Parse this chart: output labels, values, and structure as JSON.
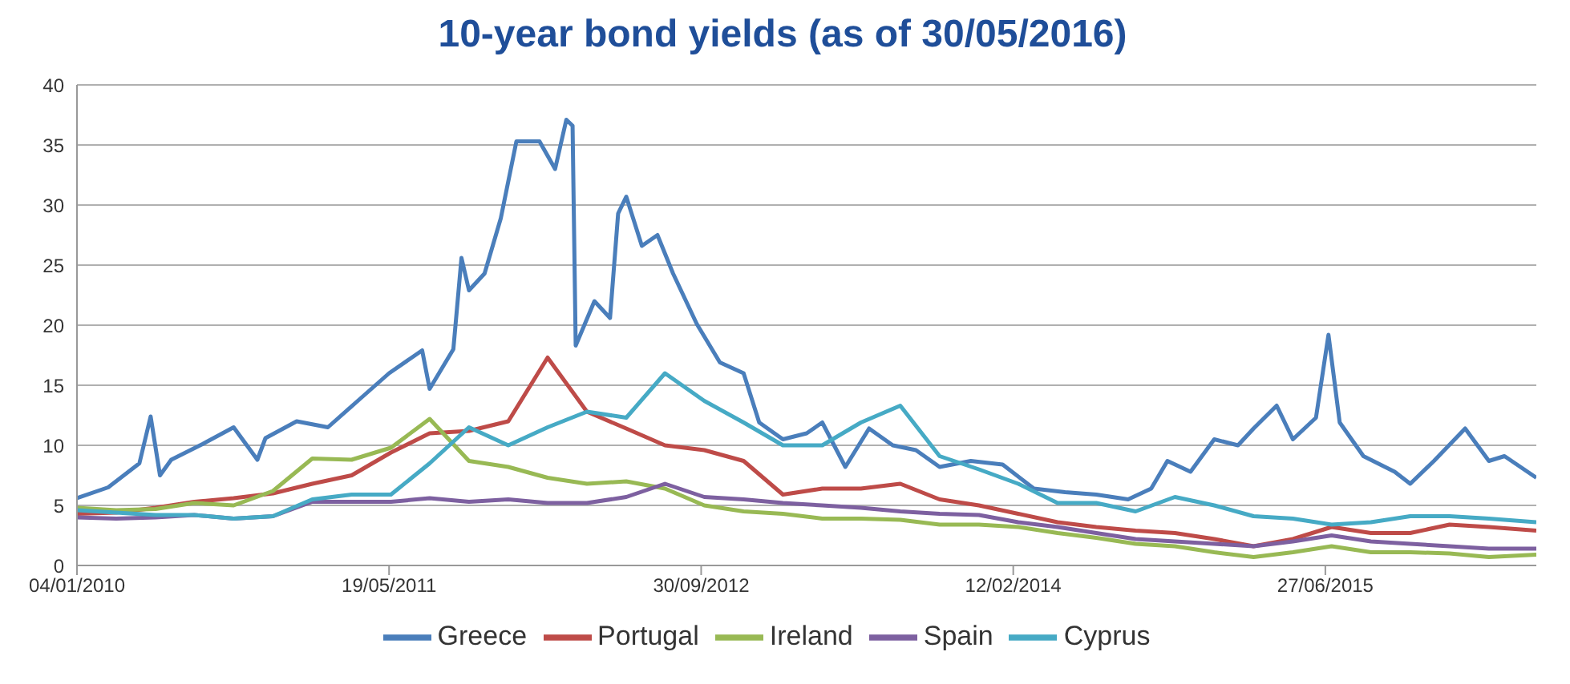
{
  "chart_data": {
    "type": "line",
    "title": "10-year bond yields (as of 30/05/2016)",
    "x": [
      "2010-01-04",
      "2010-03-08",
      "2010-05-10",
      "2010-07-11",
      "2010-09-12",
      "2010-11-14",
      "2011-01-16",
      "2011-03-20",
      "2011-05-22",
      "2011-07-23",
      "2011-09-24",
      "2011-11-26",
      "2012-01-28",
      "2012-03-31",
      "2012-06-02",
      "2012-08-03",
      "2012-10-05",
      "2012-12-07",
      "2013-02-08",
      "2013-04-12",
      "2013-06-13",
      "2013-08-15",
      "2013-10-17",
      "2013-12-19",
      "2014-02-20",
      "2014-04-24",
      "2014-06-25",
      "2014-08-27",
      "2014-10-29",
      "2014-12-31",
      "2015-03-04",
      "2015-05-06",
      "2015-07-07",
      "2015-09-08",
      "2015-11-10",
      "2016-01-12",
      "2016-03-15",
      "2016-05-30"
    ],
    "series": [
      {
        "name": "Greece",
        "color": "#4a7ebb",
        "x": [
          "2010-01-04",
          "2010-02-23",
          "2010-04-14",
          "2010-05-02",
          "2010-05-17",
          "2010-06-04",
          "2010-07-24",
          "2010-09-12",
          "2010-10-20",
          "2010-11-02",
          "2010-12-22",
          "2011-02-10",
          "2011-04-01",
          "2011-05-19",
          "2011-07-11",
          "2011-07-23",
          "2011-08-30",
          "2011-09-12",
          "2011-09-24",
          "2011-10-19",
          "2011-11-14",
          "2011-12-09",
          "2012-01-15",
          "2012-02-09",
          "2012-02-27",
          "2012-03-08",
          "2012-03-13",
          "2012-04-12",
          "2012-05-07",
          "2012-05-20",
          "2012-06-02",
          "2012-06-27",
          "2012-07-22",
          "2012-08-16",
          "2012-09-23",
          "2012-10-30",
          "2012-12-07",
          "2013-01-01",
          "2013-02-08",
          "2013-03-18",
          "2013-04-12",
          "2013-05-19",
          "2013-06-26",
          "2013-08-03",
          "2013-09-09",
          "2013-10-17",
          "2013-12-06",
          "2014-01-26",
          "2014-03-17",
          "2014-05-06",
          "2014-06-25",
          "2014-08-15",
          "2014-09-21",
          "2014-10-17",
          "2014-11-23",
          "2014-12-31",
          "2015-02-07",
          "2015-03-04",
          "2015-04-10",
          "2015-05-06",
          "2015-06-12",
          "2015-07-02",
          "2015-07-20",
          "2015-08-27",
          "2015-10-16",
          "2015-11-10",
          "2015-12-18",
          "2016-02-06",
          "2016-03-15",
          "2016-04-09",
          "2016-05-30"
        ],
        "values": [
          5.6,
          6.5,
          8.5,
          12.4,
          7.5,
          8.8,
          10.1,
          11.5,
          8.8,
          10.6,
          12,
          11.5,
          13.8,
          16,
          17.9,
          14.7,
          18,
          25.6,
          22.9,
          24.3,
          28.9,
          35.3,
          35.3,
          33,
          37.1,
          36.6,
          18.3,
          22,
          20.6,
          29.3,
          30.7,
          26.6,
          27.5,
          24.3,
          20.1,
          16.9,
          16,
          11.9,
          10.5,
          11,
          11.9,
          8.2,
          11.4,
          10,
          9.6,
          8.2,
          8.7,
          8.4,
          6.4,
          6.1,
          5.9,
          5.5,
          6.4,
          8.7,
          7.8,
          10.5,
          10,
          11.4,
          13.3,
          10.5,
          12.3,
          19.2,
          11.9,
          9.1,
          7.8,
          6.8,
          8.7,
          11.4,
          8.7,
          9.1,
          7.3
        ]
      },
      {
        "name": "Portugal",
        "color": "#be4b48",
        "values": [
          4.3,
          4.4,
          4.8,
          5.3,
          5.6,
          6.0,
          6.8,
          7.5,
          9.4,
          11.0,
          11.2,
          12.0,
          17.3,
          12.8,
          11.4,
          10,
          9.6,
          8.7,
          5.9,
          6.4,
          6.4,
          6.8,
          5.5,
          5.0,
          4.3,
          3.6,
          3.2,
          2.9,
          2.7,
          2.2,
          1.6,
          2.2,
          3.2,
          2.7,
          2.7,
          3.4,
          3.2,
          2.9
        ]
      },
      {
        "name": "Ireland",
        "color": "#98b954",
        "values": [
          4.8,
          4.6,
          4.7,
          5.2,
          5.0,
          6.2,
          8.9,
          8.8,
          9.8,
          12.2,
          8.7,
          8.2,
          7.3,
          6.8,
          7.0,
          6.4,
          5.0,
          4.5,
          4.3,
          3.9,
          3.9,
          3.8,
          3.4,
          3.4,
          3.2,
          2.7,
          2.3,
          1.8,
          1.6,
          1.1,
          0.7,
          1.1,
          1.6,
          1.1,
          1.1,
          1.0,
          0.7,
          0.9
        ]
      },
      {
        "name": "Spain",
        "color": "#7d60a0",
        "values": [
          4.0,
          3.9,
          4.0,
          4.2,
          3.9,
          4.1,
          5.3,
          5.3,
          5.3,
          5.6,
          5.3,
          5.5,
          5.2,
          5.2,
          5.7,
          6.8,
          5.7,
          5.5,
          5.2,
          5.0,
          4.8,
          4.5,
          4.3,
          4.2,
          3.6,
          3.2,
          2.7,
          2.2,
          2.0,
          1.8,
          1.6,
          2.0,
          2.5,
          2.0,
          1.8,
          1.6,
          1.4,
          1.4
        ]
      },
      {
        "name": "Cyprus",
        "color": "#46aac5",
        "values": [
          4.6,
          4.4,
          4.2,
          4.2,
          3.9,
          4.1,
          5.5,
          5.9,
          5.9,
          8.5,
          11.5,
          10.0,
          11.5,
          12.8,
          12.3,
          16.0,
          13.7,
          11.9,
          10.0,
          10.0,
          11.9,
          13.3,
          9.1,
          8.0,
          6.8,
          5.2,
          5.2,
          4.5,
          5.7,
          5.0,
          4.1,
          3.9,
          3.4,
          3.6,
          4.1,
          4.1,
          3.9,
          3.6
        ]
      }
    ],
    "xlim": [
      "2010-01-04",
      "2016-05-30"
    ],
    "xticks": [
      {
        "value": "2010-01-04",
        "label": "04/01/2010"
      },
      {
        "value": "2011-05-19",
        "label": "19/05/2011"
      },
      {
        "value": "2012-09-30",
        "label": "30/09/2012"
      },
      {
        "value": "2014-02-12",
        "label": "12/02/2014"
      },
      {
        "value": "2015-06-27",
        "label": "27/06/2015"
      }
    ],
    "ylim": [
      0,
      40
    ],
    "yticks": [
      0,
      5,
      10,
      15,
      20,
      25,
      30,
      35,
      40
    ],
    "grid": "y",
    "legend": "bottom",
    "marker": "none",
    "line_style": "solid"
  }
}
